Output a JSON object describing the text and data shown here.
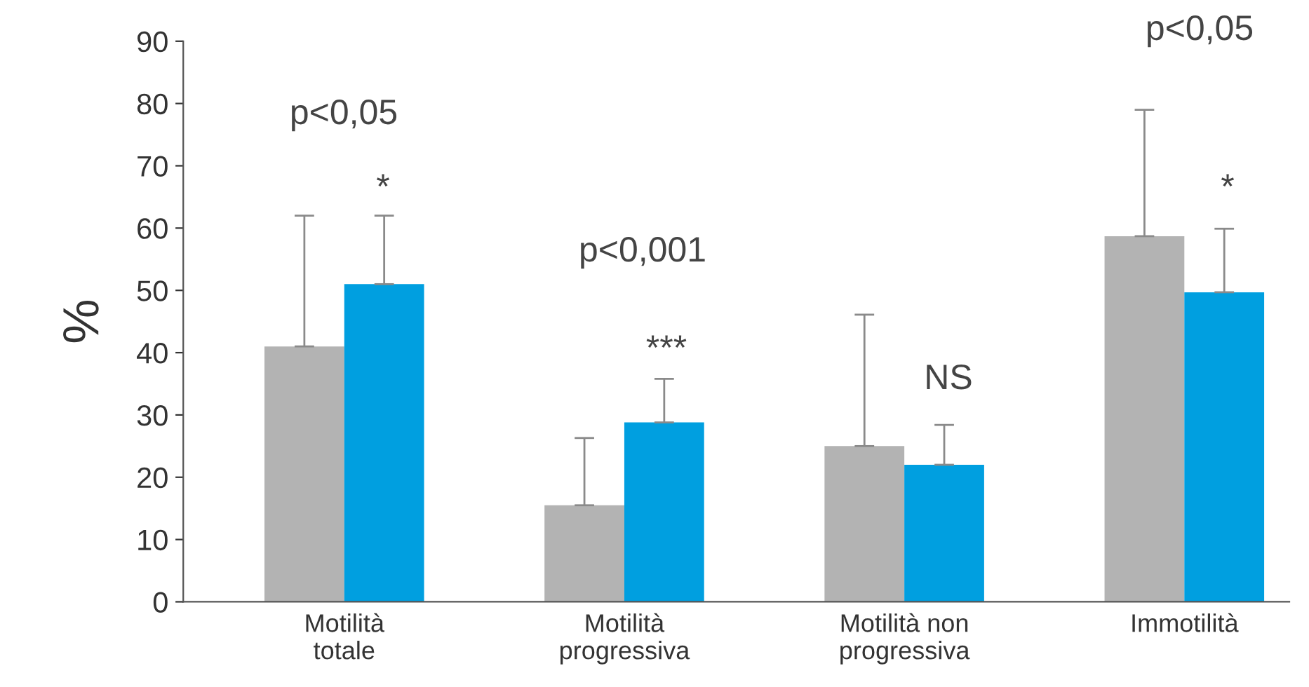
{
  "chart_data": {
    "type": "bar",
    "ylabel": "%",
    "categories": [
      "Motilità\ntotale",
      "Motilità\nprogressiva",
      "Motilità non\nprogressiva",
      "Immotilità"
    ],
    "series": [
      {
        "color": "#b3b3b3",
        "values": [
          41,
          15.5,
          25,
          58.7
        ],
        "errors": [
          [
            41,
            62
          ],
          [
            15.5,
            26.3
          ],
          [
            25,
            46.1
          ],
          [
            58.7,
            79
          ]
        ]
      },
      {
        "color": "#009fe0",
        "values": [
          51,
          28.8,
          22,
          49.7
        ],
        "errors": [
          [
            51,
            62
          ],
          [
            28.8,
            35.8
          ],
          [
            22,
            28.4
          ],
          [
            49.7,
            59.9
          ]
        ]
      }
    ],
    "ylim": [
      0,
      90
    ],
    "yticks": [
      0,
      10,
      20,
      30,
      40,
      50,
      60,
      70,
      80,
      90
    ],
    "grid": false,
    "legend": false,
    "annotations": [
      "p<0,05",
      "*",
      "p<0,001",
      "***",
      "NS",
      "p<0,05",
      "*"
    ]
  }
}
